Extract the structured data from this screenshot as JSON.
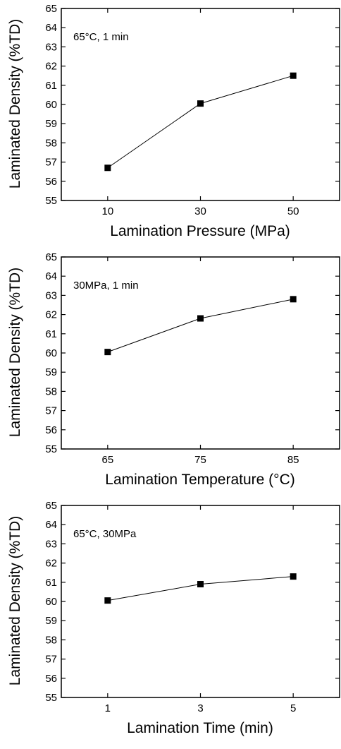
{
  "chart_data": [
    {
      "type": "line",
      "annotation": "65°C, 1 min",
      "xlabel": "Lamination Pressure (MPa)",
      "ylabel": "Laminated Density (%TD)",
      "categories": [
        "10",
        "30",
        "50"
      ],
      "x": [
        10,
        30,
        50
      ],
      "values": [
        56.7,
        60.05,
        61.5
      ],
      "xlim": [
        0,
        60
      ],
      "ylim": [
        55,
        65
      ],
      "y_ticks": [
        "55",
        "56",
        "57",
        "58",
        "59",
        "60",
        "61",
        "62",
        "63",
        "64",
        "65"
      ],
      "marker": "square",
      "grid": false,
      "line_color": "#000000"
    },
    {
      "type": "line",
      "annotation": "30MPa, 1 min",
      "xlabel": "Lamination Temperature (°C)",
      "ylabel": "Laminated Density (%TD)",
      "categories": [
        "65",
        "75",
        "85"
      ],
      "x": [
        65,
        75,
        85
      ],
      "values": [
        60.05,
        61.8,
        62.8
      ],
      "xlim": [
        60,
        90
      ],
      "ylim": [
        55,
        65
      ],
      "y_ticks": [
        "55",
        "56",
        "57",
        "58",
        "59",
        "60",
        "61",
        "62",
        "63",
        "64",
        "65"
      ],
      "marker": "square",
      "grid": false,
      "line_color": "#000000"
    },
    {
      "type": "line",
      "annotation": "65°C, 30MPa",
      "xlabel": "Lamination Time (min)",
      "ylabel": "Laminated Density (%TD)",
      "categories": [
        "1",
        "3",
        "5"
      ],
      "x": [
        1,
        3,
        5
      ],
      "values": [
        60.05,
        60.9,
        61.3
      ],
      "xlim": [
        0,
        6
      ],
      "ylim": [
        55,
        65
      ],
      "y_ticks": [
        "55",
        "56",
        "57",
        "58",
        "59",
        "60",
        "61",
        "62",
        "63",
        "64",
        "65"
      ],
      "marker": "square",
      "grid": false,
      "line_color": "#000000"
    }
  ]
}
